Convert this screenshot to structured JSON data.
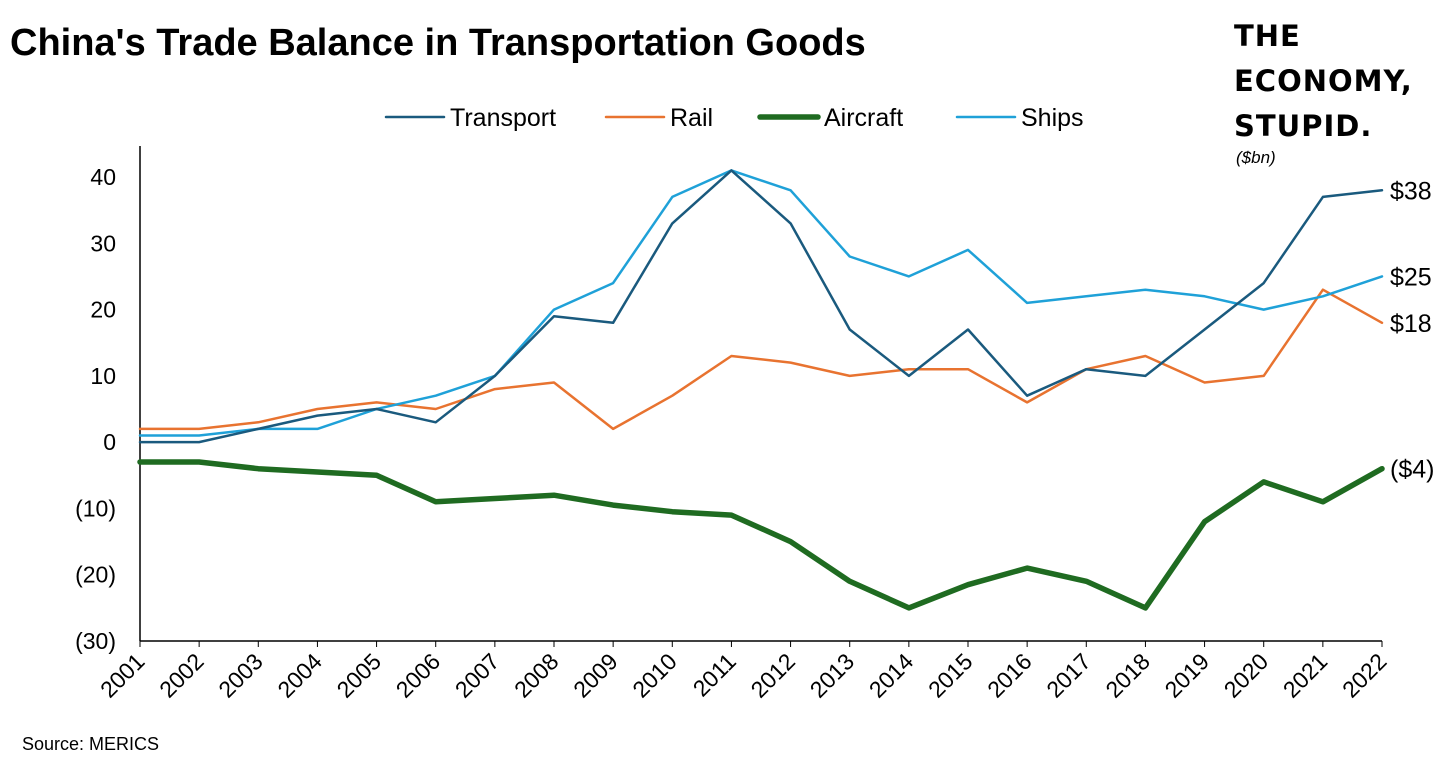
{
  "header": {
    "title": "China's Trade Balance in Transportation Goods",
    "brand_lines": [
      "THE",
      "ECONOMY,",
      "STUPID."
    ],
    "unit": "($bn)",
    "source": "Source: MERICS"
  },
  "chart_data": {
    "type": "line",
    "title": "China's Trade Balance in Transportation Goods",
    "unit": "($bn)",
    "xlabel": "",
    "ylabel": "",
    "x": [
      "2001",
      "2002",
      "2003",
      "2004",
      "2005",
      "2006",
      "2007",
      "2008",
      "2009",
      "2010",
      "2011",
      "2012",
      "2013",
      "2014",
      "2015",
      "2016",
      "2017",
      "2018",
      "2019",
      "2020",
      "2021",
      "2022"
    ],
    "ylim": [
      -30,
      40
    ],
    "yticks": [
      40,
      30,
      20,
      10,
      0,
      -10,
      -20,
      -30
    ],
    "ytick_labels": [
      "40",
      "30",
      "20",
      "10",
      "0",
      "(10)",
      "(20)",
      "(30)"
    ],
    "grid": false,
    "legend_position": "top",
    "series": [
      {
        "name": "Transport",
        "color": "#1a5a7e",
        "width": 2.5,
        "values": [
          0,
          0,
          2,
          4,
          5,
          3,
          10,
          19,
          18,
          33,
          41,
          33,
          17,
          10,
          17,
          7,
          11,
          10,
          17,
          24,
          37,
          38
        ]
      },
      {
        "name": "Rail",
        "color": "#e87330",
        "width": 2.5,
        "values": [
          2,
          2,
          3,
          5,
          6,
          5,
          8,
          9,
          2,
          7,
          13,
          12,
          10,
          11,
          11,
          6,
          11,
          13,
          9,
          10,
          23,
          18
        ]
      },
      {
        "name": "Aircraft",
        "color": "#1f6b21",
        "width": 5.5,
        "values": [
          -3,
          -3,
          -4,
          -4.5,
          -5,
          -9,
          -8.5,
          -8,
          -9.5,
          -10.5,
          -11,
          -15,
          -21,
          -25,
          -21.5,
          -19,
          -21,
          -25,
          -12,
          -6,
          -9,
          -4
        ]
      },
      {
        "name": "Ships",
        "color": "#1fa1d8",
        "width": 2.5,
        "values": [
          1,
          1,
          2,
          2,
          5,
          7,
          10,
          20,
          24,
          37,
          41,
          38,
          28,
          25,
          29,
          21,
          22,
          23,
          22,
          20,
          22,
          25
        ]
      }
    ],
    "end_labels": [
      {
        "series": "Transport",
        "text": "$38"
      },
      {
        "series": "Ships",
        "text": "$25"
      },
      {
        "series": "Rail",
        "text": "$18"
      },
      {
        "series": "Aircraft",
        "text": "($4)"
      }
    ]
  }
}
